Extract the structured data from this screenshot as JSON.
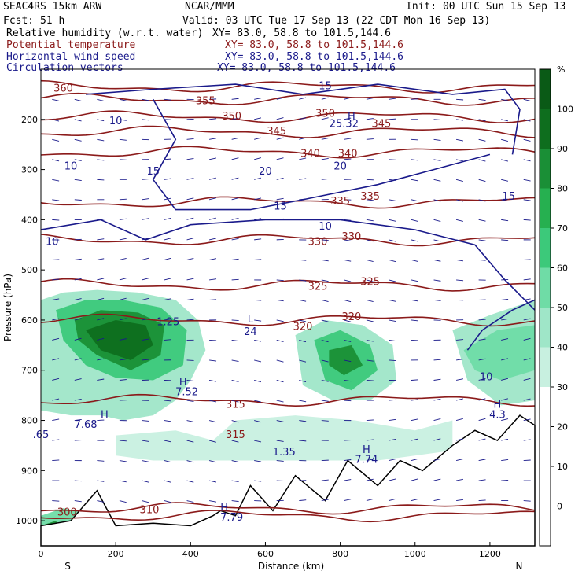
{
  "header": {
    "model": "SEAC4RS 15km ARW",
    "org": "NCAR/MMM",
    "init": "Init: 00 UTC Sun 15 Sep 13",
    "fcst": "Fcst:   51 h",
    "valid": "Valid: 03 UTC Tue 17 Sep 13 (22 CDT Mon 16 Sep 13)"
  },
  "fields": [
    {
      "name": "Relative humidity (w.r.t. water)",
      "xy": "XY=  83.0, 58.8 to 101.5,144.6",
      "color": "#000000"
    },
    {
      "name": "Potential temperature",
      "xy": "XY=  83.0, 58.8 to 101.5,144.6",
      "color": "#8b1a1a"
    },
    {
      "name": "Horizontal wind speed",
      "xy": "XY=  83.0, 58.8 to 101.5,144.6",
      "color": "#1a1a8b"
    },
    {
      "name": "Circulation vectors",
      "xy": "XY=  83.0, 58.8 to 101.5,144.6",
      "color": "#1a1a8b"
    }
  ],
  "chart_data": {
    "type": "heatmap",
    "xlabel": "Distance (km)",
    "ylabel": "Pressure (hPa)",
    "x_ticks": [
      0,
      200,
      400,
      600,
      800,
      1000,
      1200
    ],
    "y_ticks": [
      200,
      300,
      400,
      500,
      600,
      700,
      800,
      900,
      1000
    ],
    "xlim": [
      0,
      1320
    ],
    "ylim": [
      1050,
      100
    ],
    "x_end_labels": {
      "left": "S",
      "right": "N"
    },
    "colorbar": {
      "unit": "%",
      "levels": [
        0,
        10,
        20,
        30,
        40,
        50,
        60,
        70,
        80,
        90,
        100
      ],
      "colors": [
        "#ffffff",
        "#ffffff",
        "#ffffff",
        "#ffffff",
        "#c8f0e0",
        "#9fe6c8",
        "#6fdca6",
        "#3cc97a",
        "#26b050",
        "#1a8f36",
        "#0e6e1e",
        "#0a5a16"
      ]
    },
    "theta_contours": [
      {
        "value": 300,
        "p": 990,
        "xs": [
          0,
          1320
        ]
      },
      {
        "value": 310,
        "p": 975,
        "xs": [
          0,
          1320
        ]
      },
      {
        "value": 315,
        "p": 760,
        "xs": [
          0,
          1320
        ]
      },
      {
        "value": 320,
        "p": 600,
        "xs": [
          0,
          1320
        ]
      },
      {
        "value": 325,
        "p": 530,
        "xs": [
          0,
          1320
        ]
      },
      {
        "value": 330,
        "p": 440,
        "xs": [
          0,
          1320
        ]
      },
      {
        "value": 335,
        "p": 365,
        "xs": [
          0,
          1320
        ]
      },
      {
        "value": 340,
        "p": 265,
        "xs": [
          0,
          1320
        ]
      },
      {
        "value": 345,
        "p": 225,
        "xs": [
          0,
          1320
        ]
      },
      {
        "value": 350,
        "p": 195,
        "xs": [
          0,
          1320
        ]
      },
      {
        "value": 355,
        "p": 160,
        "xs": [
          0,
          1320
        ]
      },
      {
        "value": 360,
        "p": 135,
        "xs": [
          0,
          1320
        ]
      }
    ],
    "theta_labels": [
      {
        "text": "300",
        "x": 70,
        "p": 990
      },
      {
        "text": "310",
        "x": 290,
        "p": 985
      },
      {
        "text": "315",
        "x": 520,
        "p": 775
      },
      {
        "text": "315",
        "x": 520,
        "p": 835
      },
      {
        "text": "320",
        "x": 700,
        "p": 620
      },
      {
        "text": "320",
        "x": 830,
        "p": 600
      },
      {
        "text": "325",
        "x": 740,
        "p": 540
      },
      {
        "text": "325",
        "x": 880,
        "p": 530
      },
      {
        "text": "330",
        "x": 740,
        "p": 450
      },
      {
        "text": "330",
        "x": 830,
        "p": 440
      },
      {
        "text": "335",
        "x": 800,
        "p": 370
      },
      {
        "text": "335",
        "x": 880,
        "p": 360
      },
      {
        "text": "340",
        "x": 720,
        "p": 275
      },
      {
        "text": "340",
        "x": 820,
        "p": 275
      },
      {
        "text": "345",
        "x": 630,
        "p": 230
      },
      {
        "text": "345",
        "x": 910,
        "p": 215
      },
      {
        "text": "350",
        "x": 510,
        "p": 200
      },
      {
        "text": "350",
        "x": 760,
        "p": 195
      },
      {
        "text": "355",
        "x": 440,
        "p": 170
      },
      {
        "text": "360",
        "x": 60,
        "p": 145
      }
    ],
    "wind_labels": [
      {
        "text": "10",
        "x": 200,
        "p": 210
      },
      {
        "text": "10",
        "x": 80,
        "p": 300
      },
      {
        "text": "10",
        "x": 30,
        "p": 450
      },
      {
        "text": "10",
        "x": 760,
        "p": 420
      },
      {
        "text": "10",
        "x": 1190,
        "p": 720
      },
      {
        "text": "15",
        "x": 300,
        "p": 310
      },
      {
        "text": "15",
        "x": 640,
        "p": 380
      },
      {
        "text": "15",
        "x": 1250,
        "p": 360
      },
      {
        "text": "15",
        "x": 760,
        "p": 140
      },
      {
        "text": "20",
        "x": 600,
        "p": 310
      },
      {
        "text": "20",
        "x": 800,
        "p": 300
      },
      {
        "text": "25.32",
        "x": 810,
        "p": 215
      }
    ],
    "extrema": [
      {
        "text": "H",
        "x": 170,
        "p": 795
      },
      {
        "text": "7.68",
        "x": 120,
        "p": 815
      },
      {
        "text": "H",
        "x": 380,
        "p": 730
      },
      {
        "text": "7.52",
        "x": 390,
        "p": 750
      },
      {
        "text": "1.25",
        "x": 340,
        "p": 610
      },
      {
        "text": "L",
        "x": 560,
        "p": 605
      },
      {
        "text": "24",
        "x": 560,
        "p": 630
      },
      {
        "text": "H",
        "x": 490,
        "p": 980
      },
      {
        "text": "7.79",
        "x": 510,
        "p": 1000
      },
      {
        "text": "1.35",
        "x": 650,
        "p": 870
      },
      {
        "text": "H",
        "x": 870,
        "p": 865
      },
      {
        "text": "7.74",
        "x": 870,
        "p": 885
      },
      {
        "text": "H",
        "x": 1220,
        "p": 775
      },
      {
        "text": "4.3",
        "x": 1220,
        "p": 795
      },
      {
        "text": "H",
        "x": 830,
        "p": 200
      },
      {
        "text": ".65",
        "x": 0,
        "p": 835
      }
    ]
  }
}
